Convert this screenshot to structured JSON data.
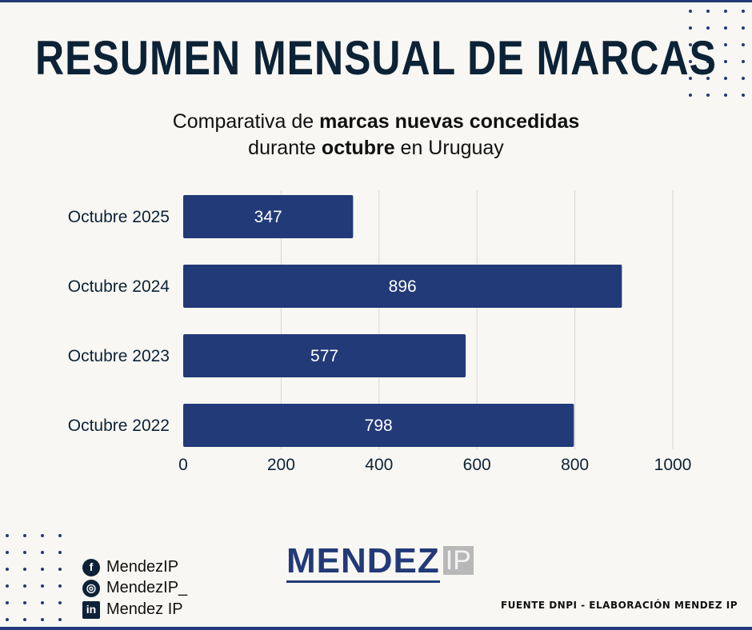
{
  "title": "RESUMEN MENSUAL DE MARCAS",
  "subtitle": {
    "line1_a": "Comparativa de ",
    "line1_b": "marcas nuevas concedidas",
    "line2_a": "durante ",
    "line2_b": "octubre",
    "line2_c": " en Uruguay"
  },
  "chart_data": {
    "type": "bar",
    "orientation": "horizontal",
    "categories": [
      "Octubre 2025",
      "Octubre 2024",
      "Octubre 2023",
      "Octubre 2022"
    ],
    "values": [
      347,
      896,
      577,
      798
    ],
    "xlim": [
      0,
      1000
    ],
    "xticks": [
      0,
      200,
      400,
      600,
      800,
      1000
    ],
    "grid": true,
    "bar_color": "#233a78",
    "data_labels": true
  },
  "social": [
    {
      "icon": "facebook-icon",
      "glyph": "f",
      "label": "MendezIP"
    },
    {
      "icon": "instagram-icon",
      "glyph": "◎",
      "label": "MendezIP_"
    },
    {
      "icon": "linkedin-icon",
      "glyph": "in",
      "label": "Mendez IP"
    }
  ],
  "logo": {
    "main": "MENDEZ",
    "suffix": "IP"
  },
  "source": "FUENTE DNPI - ELABORACIÓN MENDEZ IP",
  "colors": {
    "navy": "#233a78",
    "dark_text": "#0c2236",
    "background": "#f8f7f3",
    "logo_gray": "#b8b8b8"
  }
}
